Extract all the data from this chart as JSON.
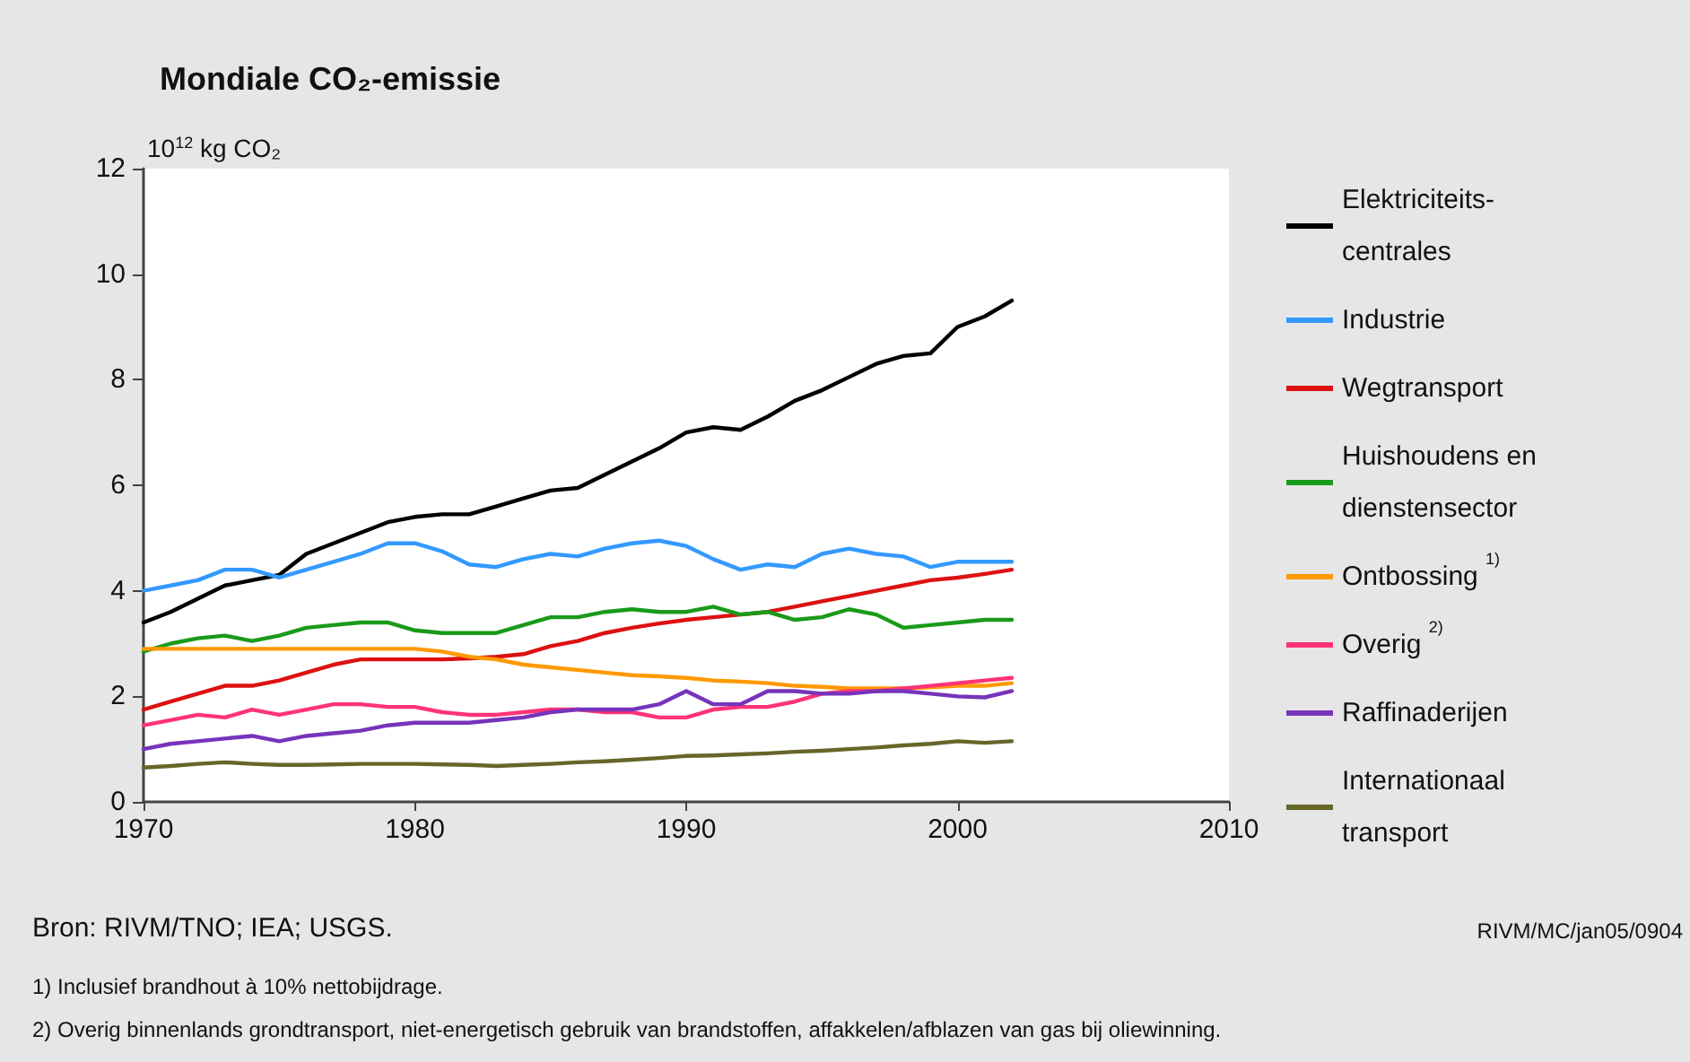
{
  "chart_data": {
    "type": "line",
    "title": "Mondiale CO₂-emissie",
    "ylabel": "10$^{12}$ kg CO₂",
    "x": [
      1970,
      1971,
      1972,
      1973,
      1974,
      1975,
      1976,
      1977,
      1978,
      1979,
      1980,
      1981,
      1982,
      1983,
      1984,
      1985,
      1986,
      1987,
      1988,
      1989,
      1990,
      1991,
      1992,
      1993,
      1994,
      1995,
      1996,
      1997,
      1998,
      1999,
      2000,
      2001,
      2002
    ],
    "series": [
      {
        "name": "Elektriciteits-centrales",
        "color": "#000000",
        "values": [
          3.4,
          3.6,
          3.85,
          4.1,
          4.2,
          4.3,
          4.7,
          4.9,
          5.1,
          5.3,
          5.4,
          5.45,
          5.45,
          5.6,
          5.75,
          5.9,
          5.95,
          6.2,
          6.45,
          6.7,
          7.0,
          7.1,
          7.05,
          7.3,
          7.6,
          7.8,
          8.05,
          8.3,
          8.45,
          8.5,
          9.0,
          9.2,
          9.5
        ]
      },
      {
        "name": "Industrie",
        "color": "#3399ff",
        "values": [
          4.0,
          4.1,
          4.2,
          4.4,
          4.4,
          4.25,
          4.4,
          4.55,
          4.7,
          4.9,
          4.9,
          4.75,
          4.5,
          4.45,
          4.6,
          4.7,
          4.65,
          4.8,
          4.9,
          4.95,
          4.85,
          4.6,
          4.4,
          4.5,
          4.45,
          4.7,
          4.8,
          4.7,
          4.65,
          4.45,
          4.55,
          4.55,
          4.55
        ]
      },
      {
        "name": "Wegtransport",
        "color": "#dd1111",
        "values": [
          1.75,
          1.9,
          2.05,
          2.2,
          2.2,
          2.3,
          2.45,
          2.6,
          2.7,
          2.7,
          2.7,
          2.7,
          2.72,
          2.75,
          2.8,
          2.95,
          3.05,
          3.2,
          3.3,
          3.38,
          3.45,
          3.5,
          3.55,
          3.6,
          3.7,
          3.8,
          3.9,
          4.0,
          4.1,
          4.2,
          4.25,
          4.32,
          4.4
        ]
      },
      {
        "name": "Huishoudens en dienstensector",
        "color": "#1a9a1a",
        "values": [
          2.85,
          3.0,
          3.1,
          3.15,
          3.05,
          3.15,
          3.3,
          3.35,
          3.4,
          3.4,
          3.25,
          3.2,
          3.2,
          3.2,
          3.35,
          3.5,
          3.5,
          3.6,
          3.65,
          3.6,
          3.6,
          3.7,
          3.55,
          3.6,
          3.45,
          3.5,
          3.65,
          3.55,
          3.3,
          3.35,
          3.4,
          3.45,
          3.45
        ]
      },
      {
        "name": "Ontbossing $^{1)}$",
        "color": "#ff9900",
        "values": [
          2.9,
          2.9,
          2.9,
          2.9,
          2.9,
          2.9,
          2.9,
          2.9,
          2.9,
          2.9,
          2.9,
          2.85,
          2.75,
          2.7,
          2.6,
          2.55,
          2.5,
          2.45,
          2.4,
          2.38,
          2.35,
          2.3,
          2.28,
          2.25,
          2.2,
          2.18,
          2.15,
          2.15,
          2.15,
          2.17,
          2.2,
          2.2,
          2.25
        ]
      },
      {
        "name": "Overig $^{2)}$",
        "color": "#ff3377",
        "values": [
          1.45,
          1.55,
          1.65,
          1.6,
          1.75,
          1.65,
          1.75,
          1.85,
          1.85,
          1.8,
          1.8,
          1.7,
          1.65,
          1.65,
          1.7,
          1.75,
          1.75,
          1.7,
          1.7,
          1.6,
          1.6,
          1.75,
          1.8,
          1.8,
          1.9,
          2.05,
          2.1,
          2.1,
          2.15,
          2.2,
          2.25,
          2.3,
          2.35
        ]
      },
      {
        "name": "Raffinaderijen",
        "color": "#7733bb",
        "values": [
          1.0,
          1.1,
          1.15,
          1.2,
          1.25,
          1.15,
          1.25,
          1.3,
          1.35,
          1.45,
          1.5,
          1.5,
          1.5,
          1.55,
          1.6,
          1.7,
          1.75,
          1.75,
          1.75,
          1.85,
          2.1,
          1.85,
          1.85,
          2.1,
          2.1,
          2.05,
          2.05,
          2.1,
          2.1,
          2.05,
          2.0,
          1.98,
          2.1
        ]
      },
      {
        "name": "Internationaal transport",
        "color": "#66662a",
        "values": [
          0.65,
          0.68,
          0.72,
          0.75,
          0.72,
          0.7,
          0.7,
          0.71,
          0.72,
          0.72,
          0.72,
          0.71,
          0.7,
          0.68,
          0.7,
          0.72,
          0.75,
          0.77,
          0.8,
          0.83,
          0.87,
          0.88,
          0.9,
          0.92,
          0.95,
          0.97,
          1.0,
          1.03,
          1.07,
          1.1,
          1.15,
          1.12,
          1.15
        ]
      }
    ],
    "xlim": [
      1970,
      2010
    ],
    "xticks": [
      1970,
      1980,
      1990,
      2000,
      2010
    ],
    "ylim": [
      0,
      12
    ],
    "yticks": [
      0,
      2,
      4,
      6,
      8,
      10,
      12
    ],
    "grid": false,
    "legend": "right",
    "marker": "none",
    "line_style": "solid",
    "annotations": [
      "Bron: RIVM/TNO; IEA; USGS.",
      "RIVM/MC/jan05/0904",
      "1) Inclusief brandhout à 10% nettobijdrage.",
      "2) Overig binnenlands grondtransport, niet-energetisch gebruik van brandstoffen, affakkelen/afblazen van gas bij oliewinning."
    ]
  }
}
